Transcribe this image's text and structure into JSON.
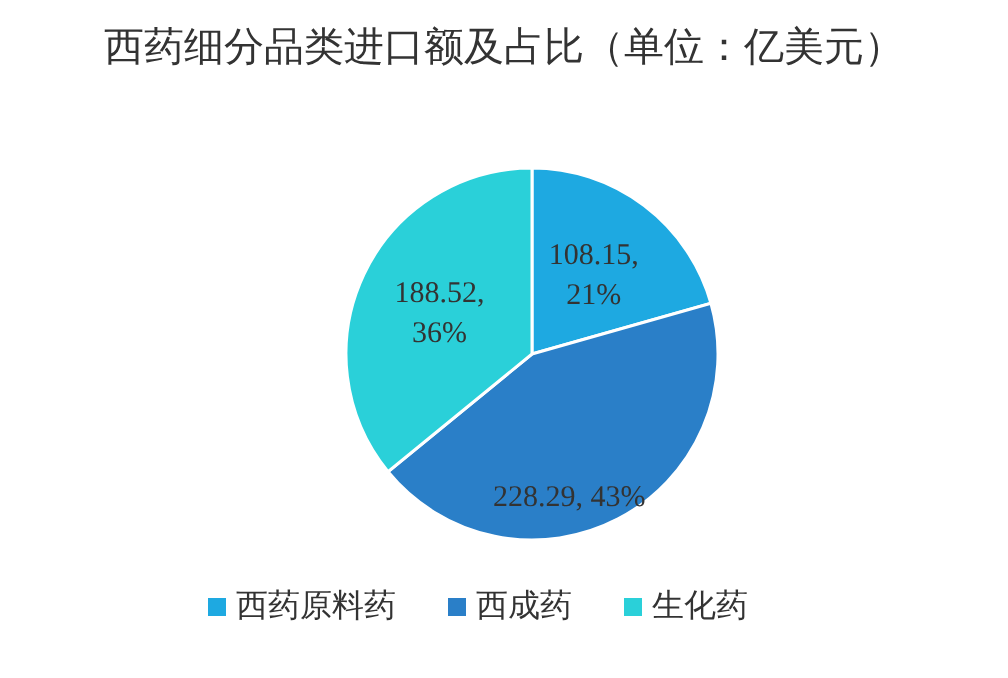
{
  "chart_data": {
    "type": "pie",
    "title": "西药细分品类进口额及占比（单位：亿美元）",
    "categories": [
      "西药原料药",
      "西成药",
      "生化药"
    ],
    "values": [
      108.15,
      228.29,
      188.52
    ],
    "colors": [
      "#1ea9e1",
      "#2a7fc8",
      "#2ad0d9"
    ],
    "value_labels": [
      "108.15, 21%",
      "228.29, 43%",
      "188.52, 36%"
    ],
    "legend": "bottom"
  }
}
